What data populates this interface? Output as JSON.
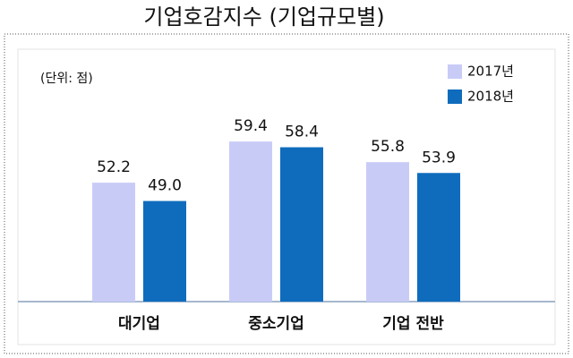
{
  "chart_data": {
    "type": "bar",
    "title": "기업호감지수 (기업규모별)",
    "unit_label": "(단위: 점)",
    "categories": [
      "대기업",
      "중소기업",
      "기업 전반"
    ],
    "series": [
      {
        "name": "2017년",
        "color": "#c9cbf7",
        "values": [
          52.2,
          59.4,
          55.8
        ],
        "value_labels": [
          "52.2",
          "59.4",
          "55.8"
        ]
      },
      {
        "name": "2018년",
        "color": "#0f6cbd",
        "values": [
          49.0,
          58.4,
          53.9
        ],
        "value_labels": [
          "49.0",
          "58.4",
          "53.9"
        ]
      }
    ],
    "ylim": [
      31.4,
      68.5
    ],
    "legend": "top-right"
  }
}
